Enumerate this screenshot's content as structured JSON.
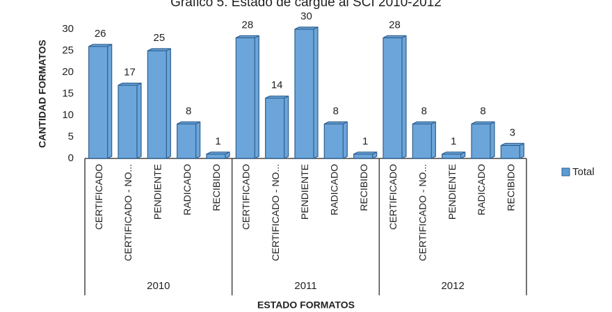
{
  "chart_data": {
    "type": "bar3d",
    "title": "Gráfico 5. Estado de cargue al SCI 2010-2012",
    "x_label": "ESTADO FORMATOS",
    "y_label": "CANTIDAD FORMATOS",
    "groups": [
      "2010",
      "2011",
      "2012"
    ],
    "categories": [
      "CERTIFICADO",
      "CERTIFICADO - NO...",
      "PENDIENTE",
      "RADICADO",
      "RECIBIDO",
      "CERTIFICADO",
      "CERTIFICADO - NO...",
      "PENDIENTE",
      "RADICADO",
      "RECIBIDO",
      "CERTIFICADO",
      "CERTIFICADO - NO...",
      "PENDIENTE",
      "RADICADO",
      "RECIBIDO"
    ],
    "series": [
      {
        "name": "Total",
        "color": "#5b9bd5",
        "values": [
          26,
          17,
          25,
          8,
          1,
          28,
          14,
          30,
          8,
          1,
          28,
          8,
          1,
          8,
          3
        ]
      }
    ],
    "ylim": [
      0,
      30
    ],
    "yticks": [
      0,
      5,
      10,
      15,
      20,
      25,
      30
    ],
    "legend": "right"
  }
}
